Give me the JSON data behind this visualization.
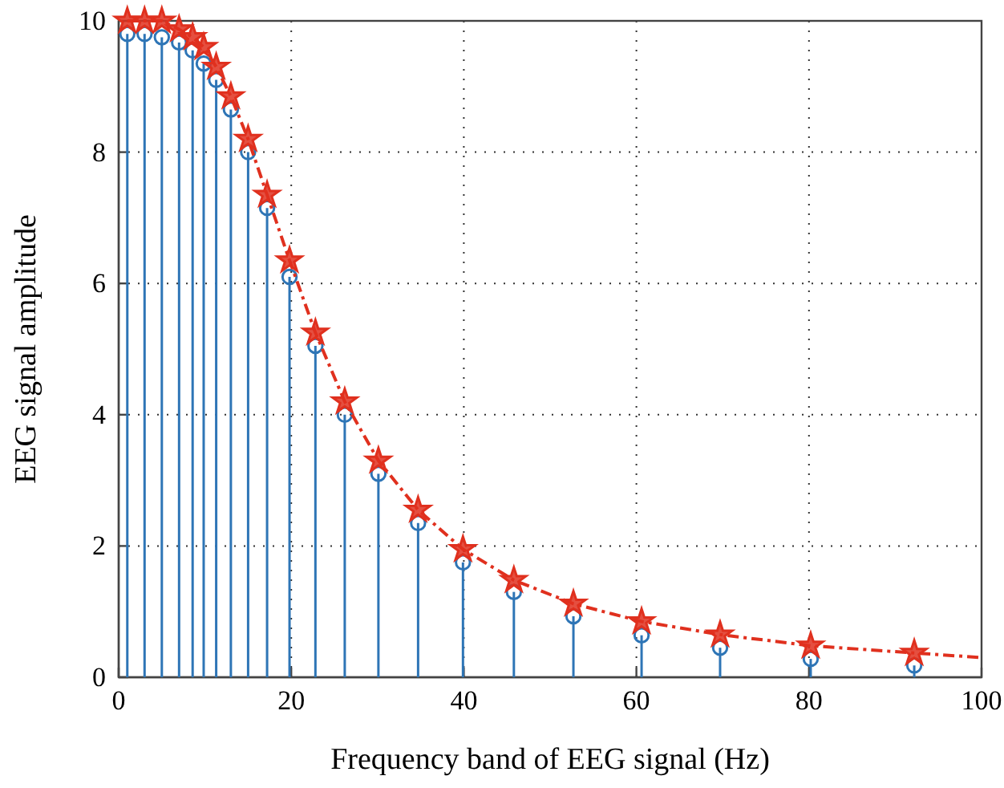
{
  "chart_data": {
    "type": "line",
    "xlabel": "Frequency band of EEG signal (Hz)",
    "ylabel": "EEG signal amplitude",
    "xlim": [
      0,
      100
    ],
    "ylim": [
      0,
      10
    ],
    "xticks": [
      0,
      20,
      40,
      60,
      80,
      100
    ],
    "yticks": [
      0,
      2,
      4,
      6,
      8,
      10
    ],
    "grid": true,
    "series": [
      {
        "type": "lollipop",
        "color": "#2e75b6",
        "marker": "circle",
        "x": [
          1,
          3,
          5,
          7,
          8.57,
          9.85,
          11.3,
          13,
          15,
          17.2,
          19.8,
          22.8,
          26.2,
          30.1,
          34.7,
          39.9,
          45.8,
          52.7,
          60.6,
          69.7,
          80.2,
          92.2
        ],
        "values": [
          9.8,
          9.8,
          9.75,
          9.67,
          9.55,
          9.35,
          9.1,
          8.65,
          8.0,
          7.15,
          6.1,
          5.05,
          4.0,
          3.1,
          2.35,
          1.75,
          1.3,
          0.93,
          0.64,
          0.45,
          0.28,
          0.18
        ]
      },
      {
        "color": "#e0301e",
        "marker": "none",
        "line_style": "dashed",
        "x": [
          1,
          3,
          5,
          7,
          8.57,
          9.85,
          11.3,
          13,
          15,
          17.2,
          19.8,
          22.8,
          26.2,
          30.1,
          34.7,
          39.9,
          45.8,
          52.7,
          60.6,
          69.7,
          80.2,
          92.2,
          100
        ],
        "values": [
          10,
          10,
          10,
          9.87,
          9.75,
          9.6,
          9.3,
          8.85,
          8.2,
          7.35,
          6.35,
          5.25,
          4.2,
          3.3,
          2.55,
          1.95,
          1.48,
          1.12,
          0.85,
          0.65,
          0.48,
          0.37,
          0.3
        ]
      },
      {
        "type": "scatter",
        "color": "#e0301e",
        "marker": "star",
        "x": [
          1,
          3,
          5,
          7,
          8.57,
          9.85,
          11.3,
          13,
          15,
          17.2,
          19.8,
          22.8,
          26.2,
          30.1,
          34.7,
          39.9,
          45.8,
          52.7,
          60.6,
          69.7,
          80.2,
          92.2
        ],
        "values": [
          10,
          10,
          10,
          9.87,
          9.75,
          9.6,
          9.3,
          8.85,
          8.2,
          7.35,
          6.35,
          5.25,
          4.2,
          3.3,
          2.55,
          1.95,
          1.48,
          1.12,
          0.85,
          0.65,
          0.48,
          0.37
        ]
      }
    ]
  }
}
